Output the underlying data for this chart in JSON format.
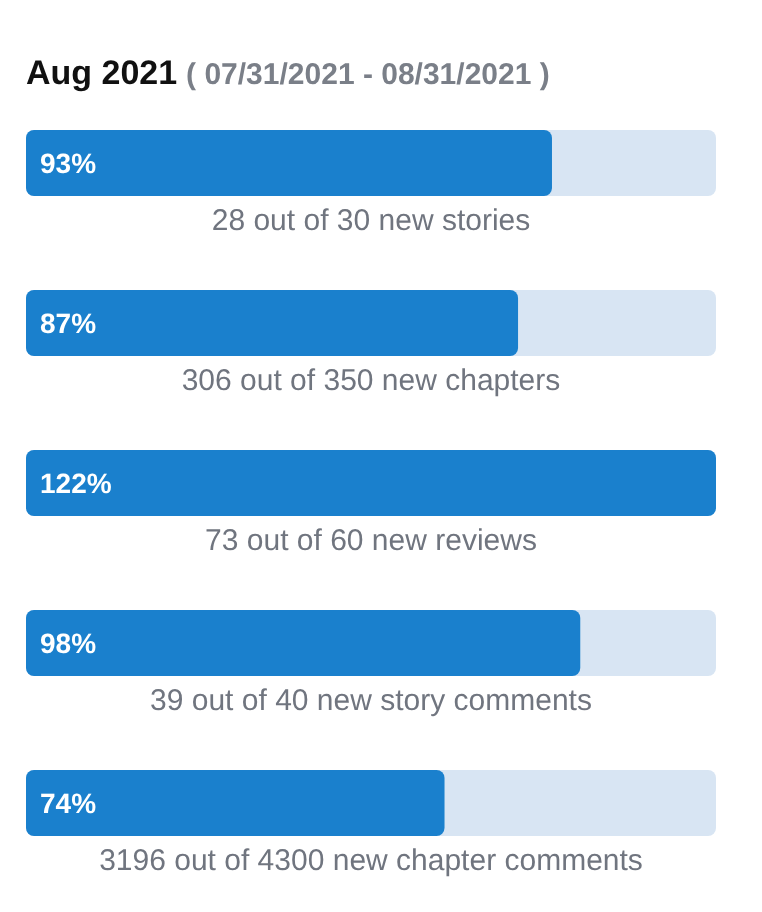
{
  "chart_data": {
    "type": "bar",
    "orientation": "horizontal",
    "title": "Aug 2021",
    "subtitle": "( 07/31/2021 - 08/31/2021 )",
    "categories": [
      "28 out of 30 new stories",
      "306 out of 350 new chapters",
      "73 out of 60 new reviews",
      "39 out of 40 new story comments",
      "3196 out of 4300 new chapter comments"
    ],
    "values": [
      93,
      87,
      122,
      98,
      74
    ],
    "value_labels": [
      "93%",
      "87%",
      "122%",
      "98%",
      "74%"
    ],
    "color": "#1a80cd",
    "tick_labels": false,
    "grid": false,
    "legend": false
  }
}
